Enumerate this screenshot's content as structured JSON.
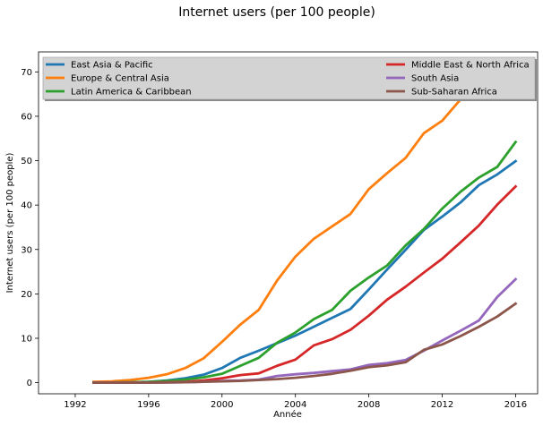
{
  "chart_data": {
    "type": "line",
    "title": "Internet users (per 100 people)",
    "xlabel": "Année",
    "ylabel": "Internet users (per 100 people)",
    "xlim": [
      1990,
      2017.2
    ],
    "ylim": [
      -2.5,
      74.5
    ],
    "xticks": [
      1992,
      1996,
      2000,
      2004,
      2008,
      2012,
      2016
    ],
    "yticks": [
      0,
      10,
      20,
      30,
      40,
      50,
      60,
      70
    ],
    "grid": false,
    "legend_placement": "top",
    "x": [
      1993,
      1994,
      1995,
      1996,
      1997,
      1998,
      1999,
      2000,
      2001,
      2002,
      2003,
      2004,
      2005,
      2006,
      2007,
      2008,
      2009,
      2010,
      2011,
      2012,
      2013,
      2014,
      2015,
      2016
    ],
    "series": [
      {
        "name": "East Asia & Pacific",
        "color": "#1f77b4",
        "values": [
          0.02,
          0.05,
          0.1,
          0.2,
          0.5,
          1.0,
          1.8,
          3.3,
          5.6,
          7.2,
          8.9,
          10.6,
          12.6,
          14.6,
          16.6,
          21.0,
          25.5,
          29.9,
          34.4,
          37.4,
          40.6,
          44.5,
          46.9,
          49.9
        ]
      },
      {
        "name": "Europe & Central Asia",
        "color": "#ff7f0e",
        "values": [
          0.2,
          0.3,
          0.6,
          1.1,
          1.9,
          3.3,
          5.5,
          9.2,
          13.1,
          16.4,
          23.0,
          28.4,
          32.4,
          35.2,
          38.0,
          43.6,
          47.2,
          50.6,
          56.2,
          59.0,
          63.8,
          67.0,
          69.5,
          71.5
        ]
      },
      {
        "name": "Latin America & Caribbean",
        "color": "#2ca02c",
        "values": [
          0.02,
          0.05,
          0.1,
          0.2,
          0.4,
          0.7,
          1.2,
          2.0,
          3.8,
          5.6,
          9.0,
          11.3,
          14.3,
          16.4,
          20.7,
          23.7,
          26.4,
          30.9,
          34.6,
          39.2,
          43.0,
          46.2,
          48.6,
          54.2
        ]
      },
      {
        "name": "Middle East & North Africa",
        "color": "#d62728",
        "values": [
          0.0,
          0.01,
          0.02,
          0.05,
          0.1,
          0.2,
          0.5,
          1.0,
          1.7,
          2.1,
          3.8,
          5.2,
          8.4,
          9.8,
          11.9,
          15.1,
          18.7,
          21.6,
          24.8,
          27.9,
          31.6,
          35.4,
          40.1,
          44.2
        ]
      },
      {
        "name": "South Asia",
        "color": "#9467bd",
        "values": [
          0.0,
          0.0,
          0.01,
          0.02,
          0.05,
          0.1,
          0.2,
          0.4,
          0.5,
          0.7,
          1.5,
          1.9,
          2.2,
          2.6,
          3.0,
          4.0,
          4.4,
          5.1,
          7.2,
          9.5,
          11.7,
          14.0,
          19.3,
          23.3
        ]
      },
      {
        "name": "Sub-Saharan Africa",
        "color": "#8c564b",
        "values": [
          0.0,
          0.0,
          0.01,
          0.03,
          0.06,
          0.1,
          0.2,
          0.3,
          0.4,
          0.6,
          0.8,
          1.1,
          1.5,
          2.0,
          2.7,
          3.5,
          3.9,
          4.6,
          7.4,
          8.6,
          10.5,
          12.6,
          14.9,
          17.8
        ]
      }
    ]
  }
}
